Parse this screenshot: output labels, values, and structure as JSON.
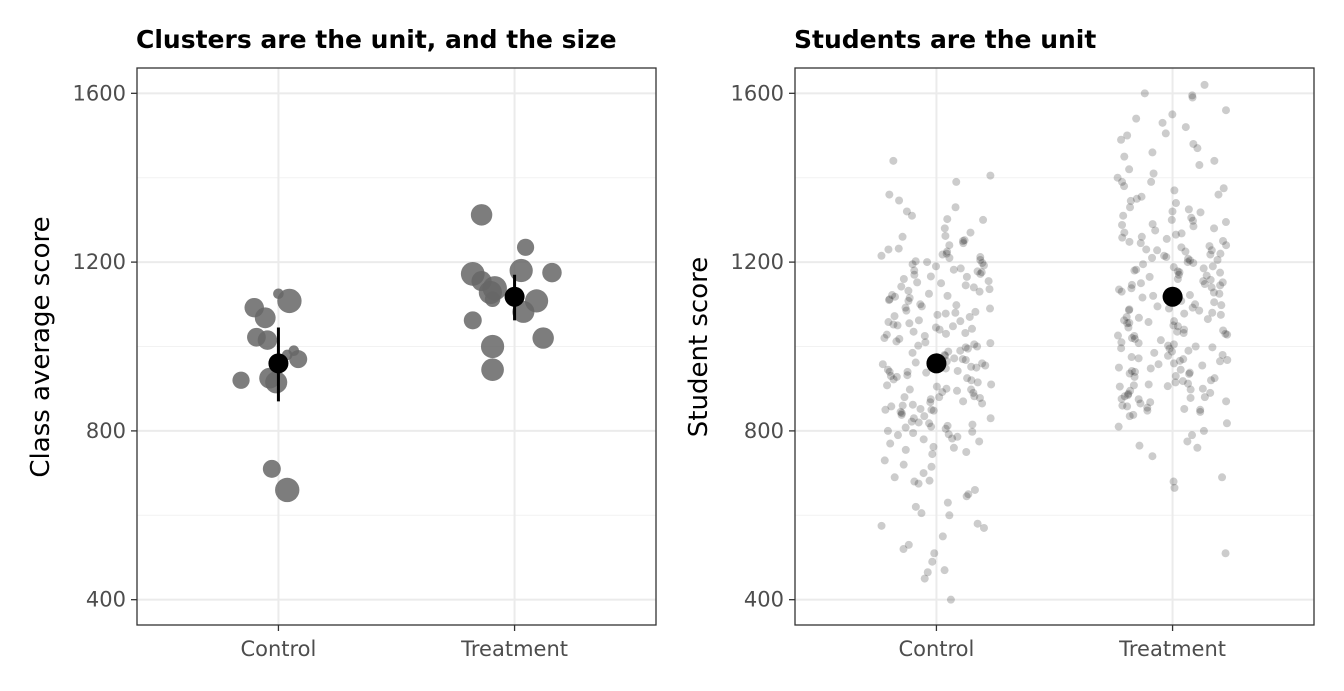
{
  "chart_data": [
    {
      "type": "scatter",
      "title": "Clusters are the unit, and the size",
      "xlabel": "",
      "ylabel": "Class average score",
      "categories": [
        "Control",
        "Treatment"
      ],
      "ylim": [
        340,
        1660
      ],
      "yticks": [
        400,
        800,
        1200,
        1600
      ],
      "grid": true,
      "point_color": "#666666",
      "summary_color": "#000000",
      "points": [
        {
          "group": "Control",
          "jitter": -0.17,
          "y": 920,
          "n": 16
        },
        {
          "group": "Control",
          "jitter": -0.11,
          "y": 1092,
          "n": 22
        },
        {
          "group": "Control",
          "jitter": -0.1,
          "y": 1022,
          "n": 20
        },
        {
          "group": "Control",
          "jitter": -0.06,
          "y": 1068,
          "n": 26
        },
        {
          "group": "Control",
          "jitter": -0.05,
          "y": 1015,
          "n": 22
        },
        {
          "group": "Control",
          "jitter": -0.04,
          "y": 925,
          "n": 26
        },
        {
          "group": "Control",
          "jitter": -0.03,
          "y": 710,
          "n": 18
        },
        {
          "group": "Control",
          "jitter": -0.01,
          "y": 915,
          "n": 30
        },
        {
          "group": "Control",
          "jitter": 0.0,
          "y": 1125,
          "n": 4
        },
        {
          "group": "Control",
          "jitter": 0.04,
          "y": 660,
          "n": 38
        },
        {
          "group": "Control",
          "jitter": 0.05,
          "y": 1108,
          "n": 38
        },
        {
          "group": "Control",
          "jitter": 0.04,
          "y": 980,
          "n": 4
        },
        {
          "group": "Control",
          "jitter": 0.07,
          "y": 990,
          "n": 4
        },
        {
          "group": "Control",
          "jitter": 0.09,
          "y": 970,
          "n": 18
        },
        {
          "group": "Treatment",
          "jitter": -0.19,
          "y": 1062,
          "n": 18
        },
        {
          "group": "Treatment",
          "jitter": -0.19,
          "y": 1172,
          "n": 36
        },
        {
          "group": "Treatment",
          "jitter": -0.15,
          "y": 1312,
          "n": 28
        },
        {
          "group": "Treatment",
          "jitter": -0.15,
          "y": 1155,
          "n": 24
        },
        {
          "group": "Treatment",
          "jitter": -0.11,
          "y": 1128,
          "n": 34
        },
        {
          "group": "Treatment",
          "jitter": -0.09,
          "y": 1138,
          "n": 38
        },
        {
          "group": "Treatment",
          "jitter": -0.1,
          "y": 1112,
          "n": 12
        },
        {
          "group": "Treatment",
          "jitter": -0.1,
          "y": 1000,
          "n": 34
        },
        {
          "group": "Treatment",
          "jitter": -0.1,
          "y": 945,
          "n": 32
        },
        {
          "group": "Treatment",
          "jitter": 0.03,
          "y": 1180,
          "n": 34
        },
        {
          "group": "Treatment",
          "jitter": 0.04,
          "y": 1082,
          "n": 30
        },
        {
          "group": "Treatment",
          "jitter": 0.05,
          "y": 1235,
          "n": 16
        },
        {
          "group": "Treatment",
          "jitter": 0.1,
          "y": 1108,
          "n": 34
        },
        {
          "group": "Treatment",
          "jitter": 0.13,
          "y": 1020,
          "n": 28
        },
        {
          "group": "Treatment",
          "jitter": 0.17,
          "y": 1175,
          "n": 22
        }
      ],
      "summary": [
        {
          "group": "Control",
          "mean": 960,
          "lower": 870,
          "upper": 1045
        },
        {
          "group": "Treatment",
          "mean": 1118,
          "lower": 1062,
          "upper": 1170
        }
      ]
    },
    {
      "type": "scatter",
      "title": "Students are the unit",
      "xlabel": "",
      "ylabel": "Student score",
      "categories": [
        "Control",
        "Treatment"
      ],
      "ylim": [
        340,
        1660
      ],
      "yticks": [
        400,
        800,
        1200,
        1600
      ],
      "grid": true,
      "point_color": "#000000",
      "point_opacity": 0.2,
      "summary_color": "#000000",
      "students": {
        "Control": [
          1225,
          1170,
          1150,
          1090,
          1080,
          1040,
          1000,
          960,
          940,
          910,
          880,
          860,
          830,
          800,
          780,
          730,
          1360,
          1330,
          1300,
          1270,
          1250,
          1230,
          1210,
          1190,
          1160,
          1130,
          1110,
          1070,
          1050,
          1020,
          990,
          970,
          950,
          920,
          890,
          870,
          850,
          820,
          790,
          760,
          700,
          680,
          650,
          620,
          580,
          550,
          520,
          490,
          470,
          1200,
          1180,
          1140,
          1120,
          1100,
          1060,
          1030,
          1010,
          980,
          940,
          930,
          900,
          880,
          850,
          830,
          810,
          770,
          750,
          720,
          690,
          660,
          630,
          600,
          570,
          530,
          510,
          450,
          400,
          1390,
          1320,
          1260,
          1240,
          1215,
          1195,
          1165,
          1145,
          1125,
          1095,
          1075,
          1055,
          1035,
          1005,
          985,
          965,
          945,
          915,
          895,
          875,
          845,
          815,
          795,
          755,
          715,
          645,
          605,
          575,
          465,
          1440,
          1405,
          1310,
          1280,
          1220,
          1205,
          1185,
          1155,
          1115,
          1085,
          1045,
          1025,
          995,
          975,
          955,
          925,
          905,
          865,
          835,
          805,
          775,
          745,
          675,
          1245,
          1212,
          1178,
          1142,
          1108,
          1062,
          1028,
          1012,
          972,
          952,
          932,
          892,
          862,
          842,
          812,
          782,
          1198,
          1176,
          1132,
          1098,
          1072,
          1042,
          1002,
          962,
          942,
          922,
          882,
          852,
          822,
          792,
          762,
          1218,
          1192,
          1166,
          1136,
          1112,
          1078,
          1048,
          1018,
          988,
          968,
          948,
          908,
          878,
          848,
          818,
          798,
          1252,
          1232,
          1172,
          1152,
          1122,
          1092,
          1058,
          1032,
          998,
          978,
          958,
          938,
          898,
          868,
          838,
          808,
          1346,
          1302,
          1262,
          1202,
          1182,
          1118,
          1082,
          1052,
          1008,
          928,
          898,
          858,
          786,
          682
        ],
        "Treatment": [
          1595,
          1490,
          1450,
          1400,
          1345,
          1300,
          1270,
          1240,
          1210,
          1180,
          1150,
          1120,
          1090,
          1060,
          1030,
          1000,
          970,
          940,
          910,
          880,
          850,
          1550,
          1500,
          1470,
          1430,
          1380,
          1330,
          1290,
          1260,
          1230,
          1200,
          1170,
          1140,
          1110,
          1080,
          1050,
          1020,
          990,
          960,
          930,
          900,
          870,
          1520,
          1480,
          1440,
          1410,
          1360,
          1320,
          1280,
          1250,
          1220,
          1190,
          1160,
          1130,
          1100,
          1070,
          1040,
          1010,
          980,
          950,
          920,
          890,
          860,
          1505,
          1420,
          1370,
          1310,
          1275,
          1245,
          1215,
          1185,
          1155,
          1125,
          1095,
          1065,
          1035,
          1005,
          975,
          945,
          915,
          885,
          855,
          810,
          1540,
          1460,
          1390,
          1340,
          1295,
          1265,
          1235,
          1205,
          1175,
          1145,
          1115,
          1085,
          1055,
          1025,
          995,
          965,
          935,
          905,
          875,
          845,
          800,
          760,
          1620,
          1530,
          1390,
          1355,
          1305,
          1285,
          1255,
          1225,
          1195,
          1165,
          1135,
          1105,
          1075,
          1045,
          1015,
          985,
          955,
          925,
          895,
          865,
          835,
          790,
          740,
          680,
          510,
          1600,
          1590,
          1560,
          1375,
          1325,
          1298,
          1268,
          1238,
          1208,
          1178,
          1148,
          1118,
          1088,
          1058,
          1028,
          998,
          968,
          938,
          908,
          878,
          848,
          818,
          775,
          765,
          690,
          665,
          1350,
          1318,
          1288,
          1258,
          1228,
          1198,
          1168,
          1138,
          1108,
          1078,
          1048,
          1018,
          988,
          958,
          928,
          898,
          868,
          838,
          1248,
          1218,
          1188,
          1158,
          1128,
          1098,
          1068,
          1038,
          1008,
          978,
          948,
          918,
          888,
          858,
          1212,
          1182,
          1152,
          1122,
          1092,
          1062,
          1032,
          1002,
          972,
          942,
          912,
          882,
          852,
          1228,
          1204,
          1176,
          1146,
          1116,
          1086,
          1056,
          1026,
          996,
          966,
          936,
          906,
          876
        ]
      },
      "summary": [
        {
          "group": "Control",
          "mean": 960
        },
        {
          "group": "Treatment",
          "mean": 1118
        }
      ]
    }
  ]
}
